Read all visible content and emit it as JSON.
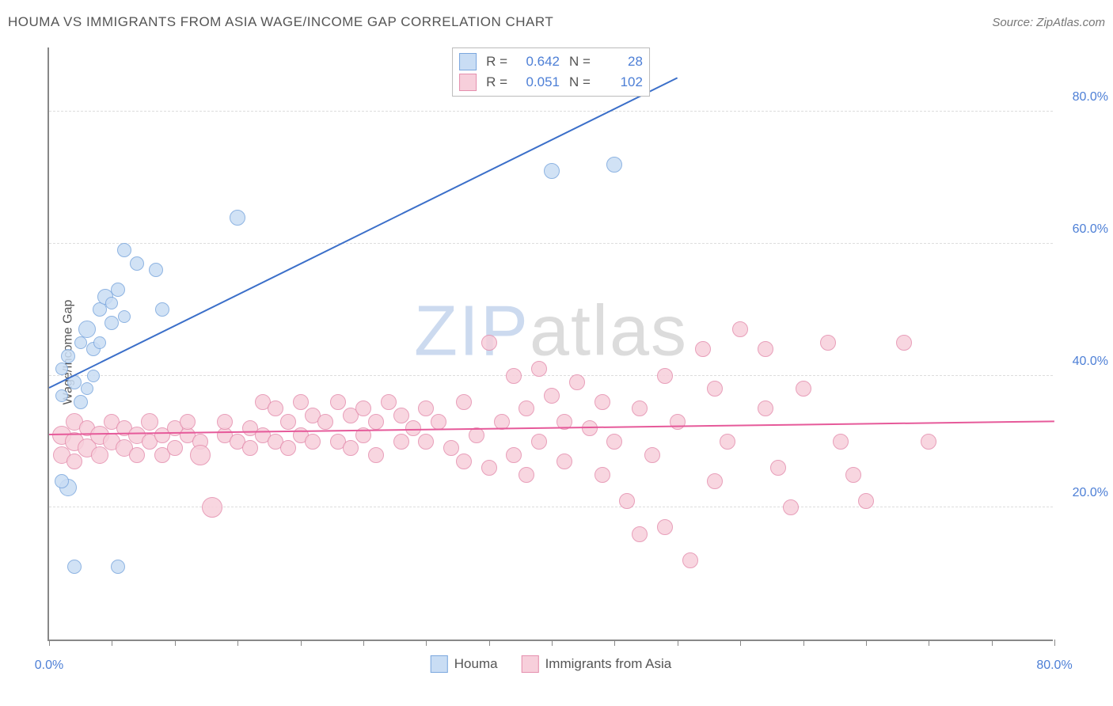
{
  "header": {
    "title": "HOUMA VS IMMIGRANTS FROM ASIA WAGE/INCOME GAP CORRELATION CHART",
    "source_prefix": "Source: ",
    "source_name": "ZipAtlas.com"
  },
  "chart": {
    "type": "scatter",
    "ylabel": "Wage/Income Gap",
    "background_color": "#ffffff",
    "grid_color": "#dddddd",
    "axis_color": "#888888",
    "tick_label_color": "#4d7fd6",
    "xlim": [
      0,
      80
    ],
    "ylim": [
      0,
      90
    ],
    "xticks_minor": [
      0,
      5,
      10,
      15,
      20,
      25,
      30,
      35,
      40,
      45,
      50,
      55,
      60,
      65,
      70,
      75,
      80
    ],
    "xticks_labeled": [
      {
        "v": 0,
        "label": "0.0%"
      },
      {
        "v": 80,
        "label": "80.0%"
      }
    ],
    "yticks": [
      {
        "v": 20,
        "label": "20.0%"
      },
      {
        "v": 40,
        "label": "40.0%"
      },
      {
        "v": 60,
        "label": "60.0%"
      },
      {
        "v": 80,
        "label": "80.0%"
      }
    ],
    "watermark": {
      "part1": "ZIP",
      "part2": "atlas"
    },
    "series": [
      {
        "key": "houma",
        "label": "Houma",
        "fill": "#c9ddf4",
        "stroke": "#7ba7de",
        "line_color": "#3b6fc9",
        "r_value": "0.642",
        "n_value": "28",
        "trend": {
          "x1": 0,
          "y1": 38,
          "x2": 50,
          "y2": 85
        },
        "points": [
          {
            "x": 1.5,
            "y": 43,
            "r": 9
          },
          {
            "x": 2.0,
            "y": 39,
            "r": 9
          },
          {
            "x": 2.5,
            "y": 36,
            "r": 9
          },
          {
            "x": 1.0,
            "y": 41,
            "r": 8
          },
          {
            "x": 3.0,
            "y": 38,
            "r": 8
          },
          {
            "x": 3.0,
            "y": 47,
            "r": 11
          },
          {
            "x": 3.5,
            "y": 44,
            "r": 9
          },
          {
            "x": 4.0,
            "y": 50,
            "r": 9
          },
          {
            "x": 4.5,
            "y": 52,
            "r": 10
          },
          {
            "x": 5.0,
            "y": 48,
            "r": 9
          },
          {
            "x": 5.5,
            "y": 53,
            "r": 9
          },
          {
            "x": 6.0,
            "y": 49,
            "r": 8
          },
          {
            "x": 7.0,
            "y": 57,
            "r": 9
          },
          {
            "x": 6.0,
            "y": 59,
            "r": 9
          },
          {
            "x": 8.5,
            "y": 56,
            "r": 9
          },
          {
            "x": 9.0,
            "y": 50,
            "r": 9
          },
          {
            "x": 15.0,
            "y": 64,
            "r": 10
          },
          {
            "x": 40.0,
            "y": 71,
            "r": 10
          },
          {
            "x": 45.0,
            "y": 72,
            "r": 10
          },
          {
            "x": 1.5,
            "y": 23,
            "r": 11
          },
          {
            "x": 1.0,
            "y": 24,
            "r": 9
          },
          {
            "x": 2.0,
            "y": 11,
            "r": 9
          },
          {
            "x": 5.5,
            "y": 11,
            "r": 9
          },
          {
            "x": 2.5,
            "y": 45,
            "r": 8
          },
          {
            "x": 3.5,
            "y": 40,
            "r": 8
          },
          {
            "x": 4.0,
            "y": 45,
            "r": 8
          },
          {
            "x": 5.0,
            "y": 51,
            "r": 8
          },
          {
            "x": 1.0,
            "y": 37,
            "r": 8
          }
        ]
      },
      {
        "key": "asia",
        "label": "Immigrants from Asia",
        "fill": "#f7cfdb",
        "stroke": "#e58fae",
        "line_color": "#e65a9a",
        "r_value": "0.051",
        "n_value": "102",
        "trend": {
          "x1": 0,
          "y1": 31,
          "x2": 80,
          "y2": 33
        },
        "points": [
          {
            "x": 1,
            "y": 31,
            "r": 12
          },
          {
            "x": 2,
            "y": 30,
            "r": 12
          },
          {
            "x": 2,
            "y": 33,
            "r": 11
          },
          {
            "x": 3,
            "y": 29,
            "r": 12
          },
          {
            "x": 3,
            "y": 32,
            "r": 10
          },
          {
            "x": 4,
            "y": 31,
            "r": 12
          },
          {
            "x": 4,
            "y": 28,
            "r": 11
          },
          {
            "x": 5,
            "y": 30,
            "r": 11
          },
          {
            "x": 5,
            "y": 33,
            "r": 10
          },
          {
            "x": 6,
            "y": 29,
            "r": 11
          },
          {
            "x": 6,
            "y": 32,
            "r": 10
          },
          {
            "x": 7,
            "y": 31,
            "r": 11
          },
          {
            "x": 7,
            "y": 28,
            "r": 10
          },
          {
            "x": 8,
            "y": 30,
            "r": 10
          },
          {
            "x": 8,
            "y": 33,
            "r": 11
          },
          {
            "x": 9,
            "y": 31,
            "r": 10
          },
          {
            "x": 9,
            "y": 28,
            "r": 10
          },
          {
            "x": 10,
            "y": 32,
            "r": 10
          },
          {
            "x": 10,
            "y": 29,
            "r": 10
          },
          {
            "x": 11,
            "y": 31,
            "r": 10
          },
          {
            "x": 11,
            "y": 33,
            "r": 10
          },
          {
            "x": 12,
            "y": 30,
            "r": 10
          },
          {
            "x": 12,
            "y": 28,
            "r": 13
          },
          {
            "x": 13,
            "y": 20,
            "r": 13
          },
          {
            "x": 14,
            "y": 31,
            "r": 10
          },
          {
            "x": 14,
            "y": 33,
            "r": 10
          },
          {
            "x": 15,
            "y": 30,
            "r": 10
          },
          {
            "x": 16,
            "y": 32,
            "r": 10
          },
          {
            "x": 16,
            "y": 29,
            "r": 10
          },
          {
            "x": 17,
            "y": 36,
            "r": 10
          },
          {
            "x": 17,
            "y": 31,
            "r": 10
          },
          {
            "x": 18,
            "y": 35,
            "r": 10
          },
          {
            "x": 18,
            "y": 30,
            "r": 10
          },
          {
            "x": 19,
            "y": 33,
            "r": 10
          },
          {
            "x": 19,
            "y": 29,
            "r": 10
          },
          {
            "x": 20,
            "y": 36,
            "r": 10
          },
          {
            "x": 20,
            "y": 31,
            "r": 10
          },
          {
            "x": 21,
            "y": 34,
            "r": 10
          },
          {
            "x": 21,
            "y": 30,
            "r": 10
          },
          {
            "x": 22,
            "y": 33,
            "r": 10
          },
          {
            "x": 23,
            "y": 36,
            "r": 10
          },
          {
            "x": 23,
            "y": 30,
            "r": 10
          },
          {
            "x": 24,
            "y": 34,
            "r": 10
          },
          {
            "x": 24,
            "y": 29,
            "r": 10
          },
          {
            "x": 25,
            "y": 35,
            "r": 10
          },
          {
            "x": 25,
            "y": 31,
            "r": 10
          },
          {
            "x": 26,
            "y": 33,
            "r": 10
          },
          {
            "x": 26,
            "y": 28,
            "r": 10
          },
          {
            "x": 27,
            "y": 36,
            "r": 10
          },
          {
            "x": 28,
            "y": 34,
            "r": 10
          },
          {
            "x": 28,
            "y": 30,
            "r": 10
          },
          {
            "x": 29,
            "y": 32,
            "r": 10
          },
          {
            "x": 30,
            "y": 35,
            "r": 10
          },
          {
            "x": 30,
            "y": 30,
            "r": 10
          },
          {
            "x": 31,
            "y": 33,
            "r": 10
          },
          {
            "x": 32,
            "y": 29,
            "r": 10
          },
          {
            "x": 33,
            "y": 36,
            "r": 10
          },
          {
            "x": 33,
            "y": 27,
            "r": 10
          },
          {
            "x": 34,
            "y": 31,
            "r": 10
          },
          {
            "x": 35,
            "y": 45,
            "r": 10
          },
          {
            "x": 35,
            "y": 26,
            "r": 10
          },
          {
            "x": 36,
            "y": 33,
            "r": 10
          },
          {
            "x": 37,
            "y": 40,
            "r": 10
          },
          {
            "x": 37,
            "y": 28,
            "r": 10
          },
          {
            "x": 38,
            "y": 35,
            "r": 10
          },
          {
            "x": 38,
            "y": 25,
            "r": 10
          },
          {
            "x": 39,
            "y": 41,
            "r": 10
          },
          {
            "x": 39,
            "y": 30,
            "r": 10
          },
          {
            "x": 40,
            "y": 37,
            "r": 10
          },
          {
            "x": 41,
            "y": 33,
            "r": 10
          },
          {
            "x": 41,
            "y": 27,
            "r": 10
          },
          {
            "x": 42,
            "y": 39,
            "r": 10
          },
          {
            "x": 43,
            "y": 32,
            "r": 10
          },
          {
            "x": 44,
            "y": 25,
            "r": 10
          },
          {
            "x": 44,
            "y": 36,
            "r": 10
          },
          {
            "x": 45,
            "y": 30,
            "r": 10
          },
          {
            "x": 46,
            "y": 21,
            "r": 10
          },
          {
            "x": 47,
            "y": 16,
            "r": 10
          },
          {
            "x": 47,
            "y": 35,
            "r": 10
          },
          {
            "x": 48,
            "y": 28,
            "r": 10
          },
          {
            "x": 49,
            "y": 17,
            "r": 10
          },
          {
            "x": 49,
            "y": 40,
            "r": 10
          },
          {
            "x": 50,
            "y": 33,
            "r": 10
          },
          {
            "x": 51,
            "y": 12,
            "r": 10
          },
          {
            "x": 52,
            "y": 44,
            "r": 10
          },
          {
            "x": 53,
            "y": 24,
            "r": 10
          },
          {
            "x": 53,
            "y": 38,
            "r": 10
          },
          {
            "x": 54,
            "y": 30,
            "r": 10
          },
          {
            "x": 55,
            "y": 47,
            "r": 10
          },
          {
            "x": 57,
            "y": 35,
            "r": 10
          },
          {
            "x": 57,
            "y": 44,
            "r": 10
          },
          {
            "x": 58,
            "y": 26,
            "r": 10
          },
          {
            "x": 59,
            "y": 20,
            "r": 10
          },
          {
            "x": 60,
            "y": 38,
            "r": 10
          },
          {
            "x": 62,
            "y": 45,
            "r": 10
          },
          {
            "x": 63,
            "y": 30,
            "r": 10
          },
          {
            "x": 64,
            "y": 25,
            "r": 10
          },
          {
            "x": 65,
            "y": 21,
            "r": 10
          },
          {
            "x": 68,
            "y": 45,
            "r": 10
          },
          {
            "x": 70,
            "y": 30,
            "r": 10
          },
          {
            "x": 1,
            "y": 28,
            "r": 11
          },
          {
            "x": 2,
            "y": 27,
            "r": 10
          }
        ]
      }
    ]
  },
  "legend_labels": {
    "r": "R =",
    "n": "N ="
  }
}
